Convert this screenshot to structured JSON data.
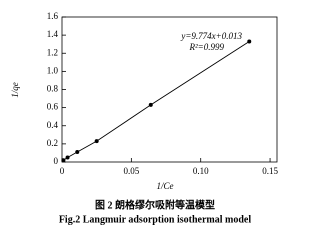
{
  "chart_data": {
    "type": "line",
    "x_label": "1/Ce",
    "y_label": "1/qe",
    "annotations": [
      "y=9.774x+0.013",
      "R²=0.999"
    ],
    "caption": [
      "图 2  朗格缪尔吸附等温模型",
      "Fig.2 Langmuir adsorption isothermal model"
    ],
    "x": [
      0.001,
      0.004,
      0.011,
      0.025,
      0.064,
      0.135
    ],
    "series": [
      {
        "values": [
          0.02,
          0.05,
          0.11,
          0.23,
          0.63,
          1.33
        ],
        "color": "#000000"
      }
    ],
    "xlim": [
      0,
      0.155
    ],
    "xticks": [
      0,
      0.05,
      {
        "value": 0.1,
        "label": "0.10"
      },
      0.15
    ],
    "ylim": [
      0,
      1.6
    ],
    "yticks": [
      0,
      0.2,
      0.4,
      0.6,
      0.8,
      {
        "value": 1,
        "label": "1.0"
      },
      1.2,
      1.4,
      1.6
    ],
    "grid": false
  }
}
